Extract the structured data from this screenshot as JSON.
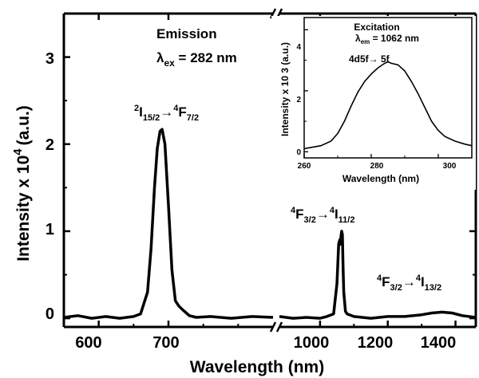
{
  "chart_data": {
    "type": "line",
    "main": {
      "xlabel": "Wavelength (nm)",
      "ylabel": "Intensity x 10",
      "ylabel_sup": "4",
      "ylabel_unit": "(a.u.)",
      "axis_break": true,
      "segments": [
        {
          "xlim": [
            550,
            850
          ],
          "xticks": [
            "600",
            "700"
          ]
        },
        {
          "xlim": [
            880,
            1460
          ],
          "xticks": [
            "1000",
            "1200",
            "1400"
          ]
        }
      ],
      "ylim": [
        -0.1,
        3.5
      ],
      "yticks": [
        "0",
        "1",
        "2",
        "3"
      ],
      "title_lines": [
        "Emission",
        "λex = 282 nm"
      ],
      "series": [
        {
          "segment": 0,
          "x": [
            550,
            570,
            590,
            610,
            630,
            650,
            660,
            670,
            675,
            680,
            684,
            688,
            691,
            695,
            700,
            705,
            710,
            715,
            720,
            730,
            740,
            760,
            790,
            820,
            850
          ],
          "y": [
            0.01,
            0.03,
            0.0,
            0.02,
            0.0,
            0.02,
            0.05,
            0.3,
            0.8,
            1.5,
            1.95,
            2.15,
            2.17,
            2.0,
            1.3,
            0.55,
            0.2,
            0.14,
            0.1,
            0.03,
            0.01,
            0.02,
            0.0,
            0.02,
            0.01
          ]
        },
        {
          "segment": 1,
          "x": [
            880,
            920,
            960,
            1000,
            1020,
            1040,
            1050,
            1055,
            1058,
            1060,
            1062,
            1064,
            1066,
            1068,
            1070,
            1075,
            1080,
            1100,
            1150,
            1200,
            1250,
            1300,
            1330,
            1360,
            1390,
            1420,
            1460
          ],
          "y": [
            0.02,
            0.0,
            0.01,
            0.0,
            0.02,
            0.05,
            0.4,
            0.85,
            0.9,
            0.85,
            0.95,
            1.0,
            0.96,
            0.6,
            0.3,
            0.08,
            0.05,
            0.02,
            0.0,
            0.02,
            0.02,
            0.04,
            0.06,
            0.07,
            0.06,
            0.03,
            0.01
          ]
        }
      ],
      "annotations": [
        {
          "base": "2",
          "mid": "I",
          "sub1": "15/2",
          "arrow": "→",
          "base2": "4",
          "mid2": "F",
          "sub2": "7/2"
        },
        {
          "base": "4",
          "mid": "F",
          "sub1": "3/2",
          "arrow": "→",
          "base2": "4",
          "mid2": "I",
          "sub2": "11/2"
        },
        {
          "base": "4",
          "mid": "F",
          "sub1": "3/2",
          "arrow": "→",
          "base2": "4",
          "mid2": "I",
          "sub2": "13/2"
        }
      ]
    },
    "inset": {
      "type": "line",
      "title": "Excitation",
      "subtitle_pre": "λ",
      "subtitle_sub": "em",
      "subtitle_post": " = 1062 nm",
      "annotation": "4d5f→ 5f",
      "xlabel": "Wavelength (nm)",
      "ylabel": "Intensity x 10  3 (a.u.)",
      "xlim": [
        260,
        310
      ],
      "xticks": [
        "260",
        "280",
        "300"
      ],
      "ylim": [
        -0.2,
        4.4
      ],
      "yticks": [
        "0",
        "2",
        "4"
      ],
      "x": [
        260,
        265,
        268,
        270,
        272,
        274,
        276,
        278,
        280,
        282,
        284,
        285,
        286,
        288,
        290,
        292,
        294,
        296,
        298,
        300,
        302,
        305,
        308,
        310
      ],
      "y": [
        0.1,
        0.2,
        0.35,
        0.6,
        1.0,
        1.5,
        1.95,
        2.3,
        2.55,
        2.75,
        2.9,
        2.95,
        2.9,
        2.85,
        2.65,
        2.3,
        1.9,
        1.45,
        1.0,
        0.7,
        0.5,
        0.35,
        0.25,
        0.2
      ]
    }
  }
}
